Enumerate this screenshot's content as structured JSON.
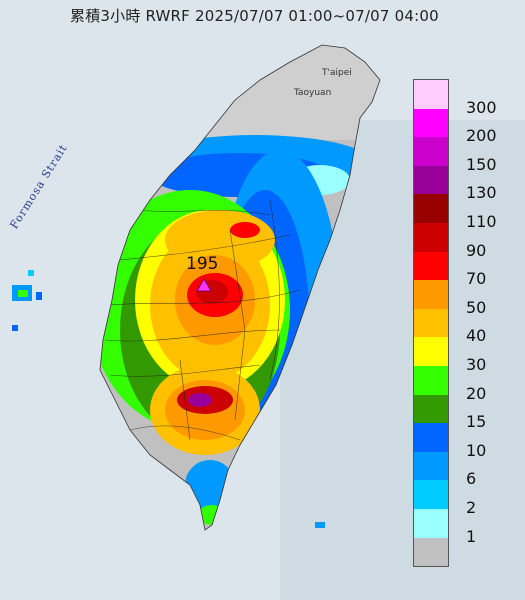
{
  "title": "累積3小時 RWRF 2025/07/07 01:00~07/07 04:00",
  "map_labels": {
    "strait": "Formosa Strait",
    "taipei": "T'aipei",
    "taoyuan": "Taoyuan",
    "max_value": "195"
  },
  "legend": {
    "levels": [
      {
        "label": "300",
        "color": "#ffccff"
      },
      {
        "label": "200",
        "color": "#ff00ff"
      },
      {
        "label": "150",
        "color": "#cc00cc"
      },
      {
        "label": "130",
        "color": "#990099"
      },
      {
        "label": "110",
        "color": "#990000"
      },
      {
        "label": "90",
        "color": "#cc0000"
      },
      {
        "label": "70",
        "color": "#ff0000"
      },
      {
        "label": "50",
        "color": "#ff9900"
      },
      {
        "label": "40",
        "color": "#ffc000"
      },
      {
        "label": "30",
        "color": "#ffff00"
      },
      {
        "label": "20",
        "color": "#33ff00"
      },
      {
        "label": "15",
        "color": "#339900"
      },
      {
        "label": "10",
        "color": "#0066ff"
      },
      {
        "label": "6",
        "color": "#0099ff"
      },
      {
        "label": "2",
        "color": "#00ccff"
      },
      {
        "label": "1",
        "color": "#99ffff"
      },
      {
        "label": "",
        "color": "#c0c0c0"
      }
    ]
  }
}
